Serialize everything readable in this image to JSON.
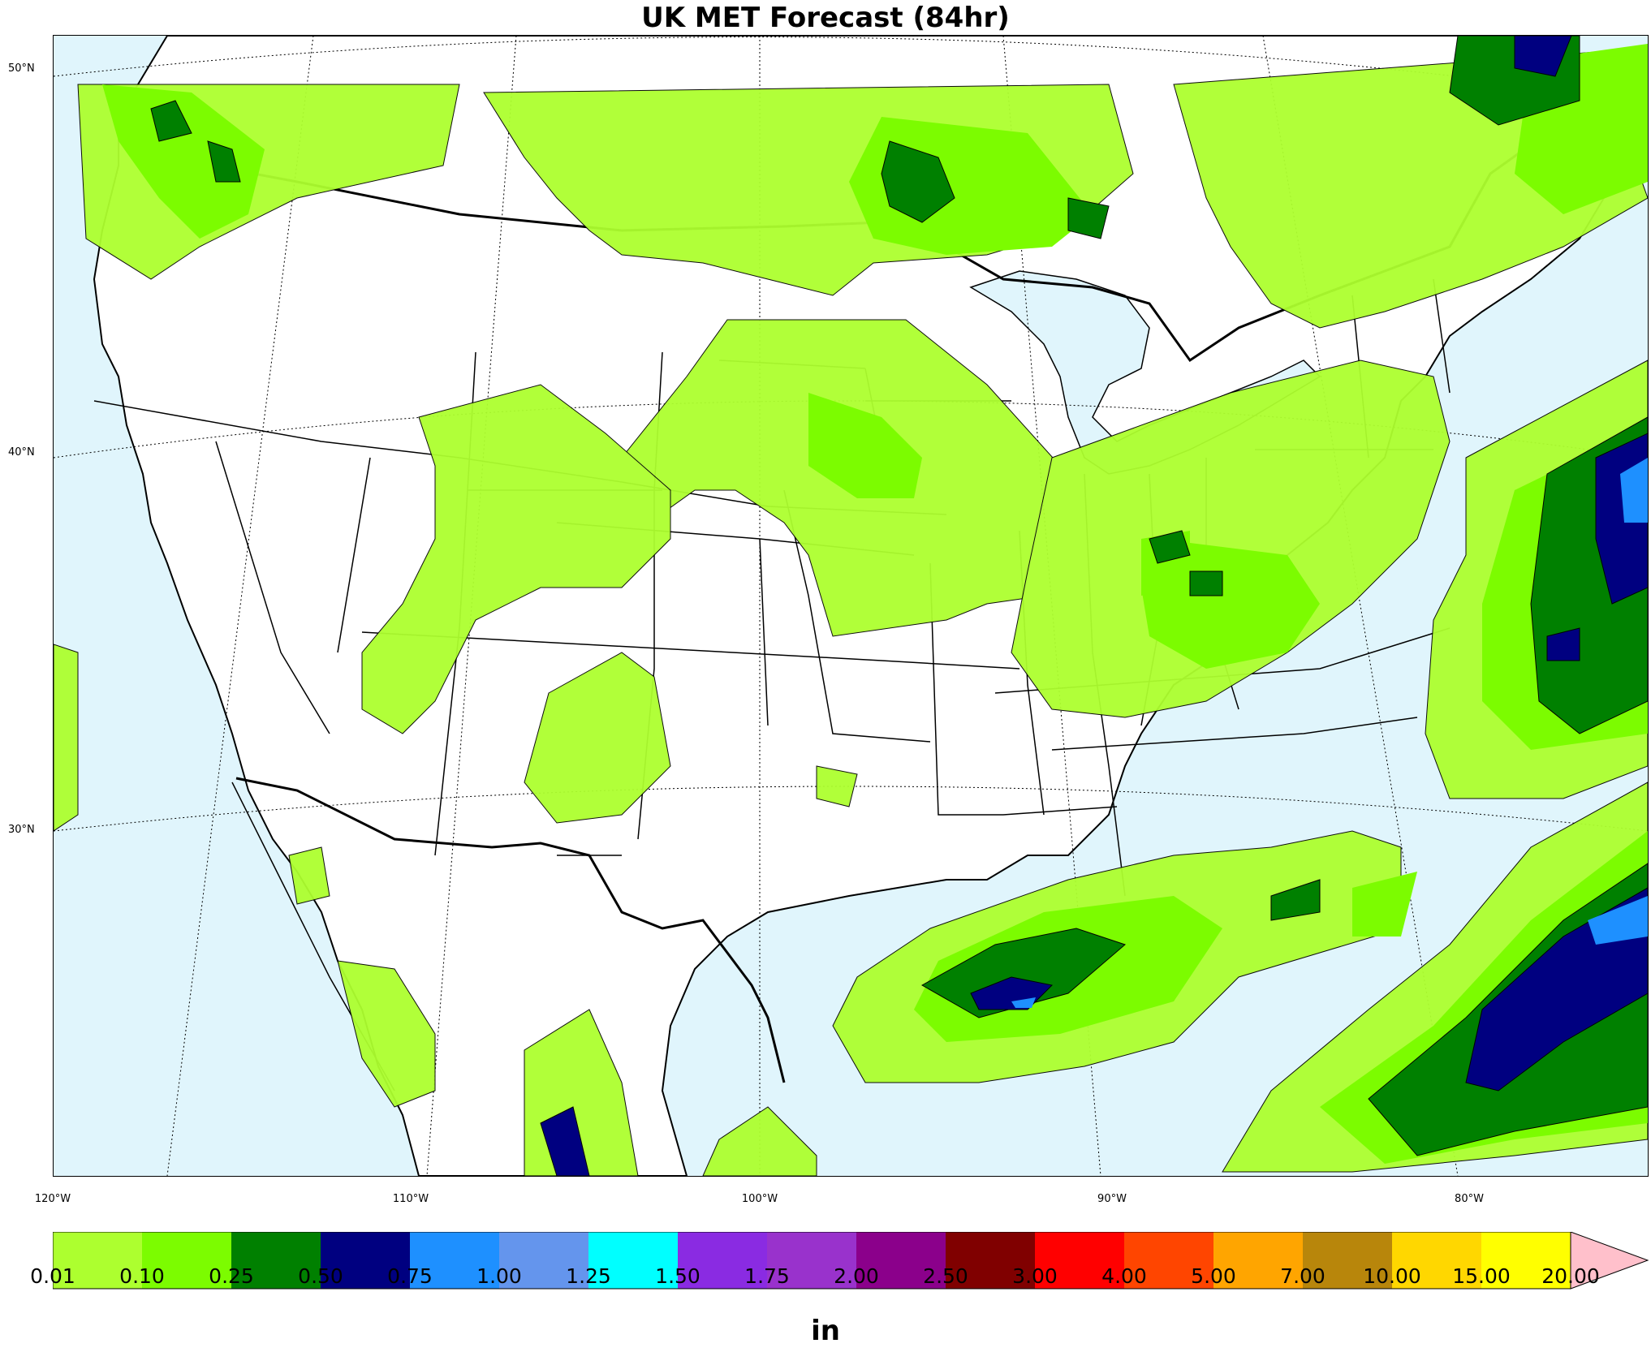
{
  "title": "UK MET Forecast (84hr)",
  "lat_labels": [
    "50°N",
    "40°N",
    "30°N"
  ],
  "lon_labels": [
    "120°W",
    "110°W",
    "100°W",
    "90°W",
    "80°W"
  ],
  "colors": {
    "ocean": "#e0f5fc",
    "land": "#ffffff",
    "border": "#000000"
  },
  "colorbar": {
    "units": "in",
    "ticks": [
      "0.01",
      "0.10",
      "0.25",
      "0.50",
      "0.75",
      "1.00",
      "1.25",
      "1.50",
      "1.75",
      "2.00",
      "2.50",
      "3.00",
      "4.00",
      "5.00",
      "7.00",
      "10.00",
      "15.00",
      "20.00"
    ],
    "colors": [
      "#adff2f",
      "#7cfc00",
      "#008000",
      "#000080",
      "#1e90ff",
      "#6495ed",
      "#00ffff",
      "#8a2be2",
      "#9932cc",
      "#8b008b",
      "#800000",
      "#ff0000",
      "#ff4500",
      "#ffa500",
      "#b8860b",
      "#ffd700",
      "#ffff00"
    ],
    "extend_color": "#ffc0cb"
  }
}
